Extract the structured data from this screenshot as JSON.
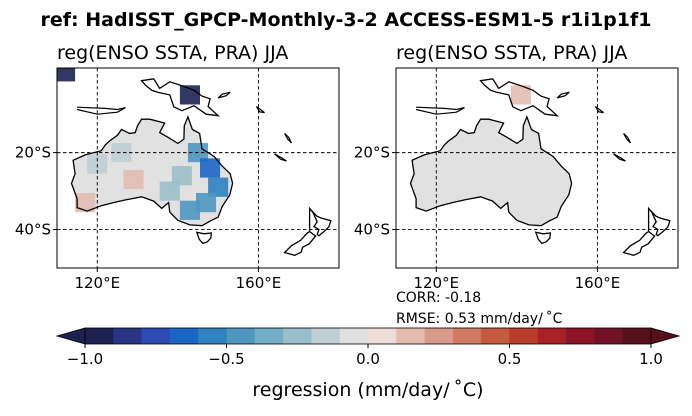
{
  "chart_data": {
    "type": "heatmap",
    "title": "ref: HadISST_GPCP-Monthly-3-2 ACCESS-ESM1-5 r1i1p1f1",
    "panels": [
      {
        "title": "reg(ENSO SSTA, PRA) JJA",
        "lon_range": [
          110,
          180
        ],
        "lat_range": [
          -50,
          2
        ],
        "x_ticks": [
          {
            "value": 120,
            "label": "120°E"
          },
          {
            "value": 160,
            "label": "160°E"
          }
        ],
        "y_ticks": [
          {
            "value": -20,
            "label": "20°S"
          },
          {
            "value": -40,
            "label": "40°S"
          }
        ],
        "grid": true,
        "cells": [
          {
            "lon": 143,
            "lat": -5,
            "value": -1.0
          },
          {
            "lon": 112,
            "lat": 1,
            "value": -1.0
          },
          {
            "lon": 145,
            "lat": -20,
            "value": -0.5
          },
          {
            "lon": 148,
            "lat": -24,
            "value": -0.7
          },
          {
            "lon": 150,
            "lat": -29,
            "value": -0.6
          },
          {
            "lon": 147,
            "lat": -33,
            "value": -0.5
          },
          {
            "lon": 143,
            "lat": -35,
            "value": -0.5
          },
          {
            "lon": 141,
            "lat": -26,
            "value": -0.3
          },
          {
            "lon": 138,
            "lat": -30,
            "value": -0.3
          },
          {
            "lon": 126,
            "lat": -20,
            "value": -0.2
          },
          {
            "lon": 120,
            "lat": -23,
            "value": -0.15
          },
          {
            "lon": 117,
            "lat": -33,
            "value": 0.1
          },
          {
            "lon": 129,
            "lat": -27,
            "value": 0.1
          }
        ]
      },
      {
        "title": "reg(ENSO SSTA, PRA) JJA",
        "lon_range": [
          110,
          180
        ],
        "lat_range": [
          -50,
          2
        ],
        "x_ticks": [
          {
            "value": 120,
            "label": "120°E"
          },
          {
            "value": 160,
            "label": "160°E"
          }
        ],
        "y_ticks": [
          {
            "value": -20,
            "label": "20°S"
          },
          {
            "value": -40,
            "label": "40°S"
          }
        ],
        "grid": true,
        "cells": [
          {
            "lon": 141,
            "lat": -5,
            "value": 0.1
          }
        ]
      }
    ],
    "stats": {
      "corr": "CORR: -0.18",
      "rmse": "RMSE: 0.53 mm/day/$^\\circ$C"
    },
    "colorbar": {
      "label": "regression (mm/day/$^\\circ$C)",
      "range": [
        -1.0,
        1.0
      ],
      "ticks": [
        {
          "value": -1.0,
          "label": "−1.0"
        },
        {
          "value": -0.5,
          "label": "−0.5"
        },
        {
          "value": 0.0,
          "label": "0.0"
        },
        {
          "value": 0.5,
          "label": "0.5"
        },
        {
          "value": 1.0,
          "label": "1.0"
        }
      ],
      "colors": [
        "#1c2152",
        "#293487",
        "#2b4bb3",
        "#1b67c6",
        "#2f82c0",
        "#4f97c0",
        "#74adc5",
        "#9bbfca",
        "#bfcfd4",
        "#e0e0e0",
        "#ecdcd6",
        "#e2bcb1",
        "#d89a8a",
        "#cf7a63",
        "#c45a40",
        "#b83b2c",
        "#a72126",
        "#8c1426",
        "#721226",
        "#551019"
      ],
      "extend": "both"
    },
    "land_color": "#e1e1e1"
  }
}
